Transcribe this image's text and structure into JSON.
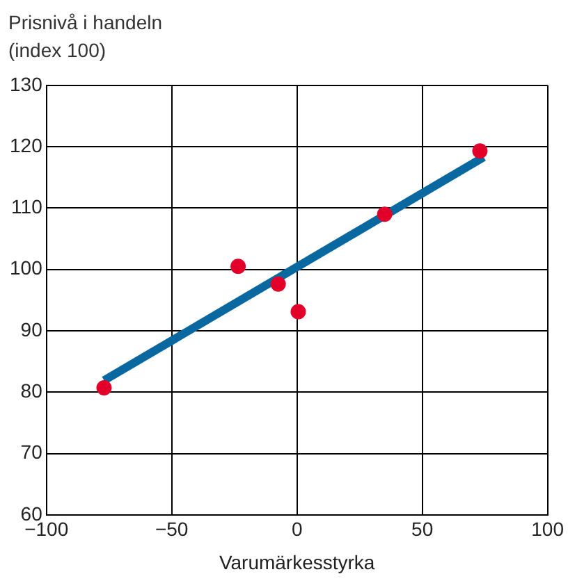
{
  "chart_data": {
    "type": "scatter",
    "ylabel": "Prisnivå i handeln\n(index 100)",
    "xlabel": "Varumärkesstyrka",
    "xlim": [
      -100,
      100
    ],
    "xticks": [
      {
        "value": -100,
        "label": "−100"
      },
      {
        "value": -50,
        "label": "−50"
      },
      0,
      50,
      100
    ],
    "ylim": [
      60,
      130
    ],
    "yticks": [
      60,
      70,
      80,
      90,
      100,
      110,
      120,
      130
    ],
    "grid": true,
    "legend": false,
    "marker": "circle",
    "series": [
      {
        "color": "#e2002a",
        "x": [
          -77,
          -23.5,
          -7.5,
          0.5,
          35,
          73
        ],
        "values": [
          80.7,
          100.5,
          97.6,
          93.1,
          109,
          119.3
        ]
      },
      {
        "type": "line",
        "marker": "none",
        "color": "#0a68a0",
        "x": [
          -77,
          74.5
        ],
        "values": [
          81.9,
          118.3
        ]
      }
    ]
  }
}
